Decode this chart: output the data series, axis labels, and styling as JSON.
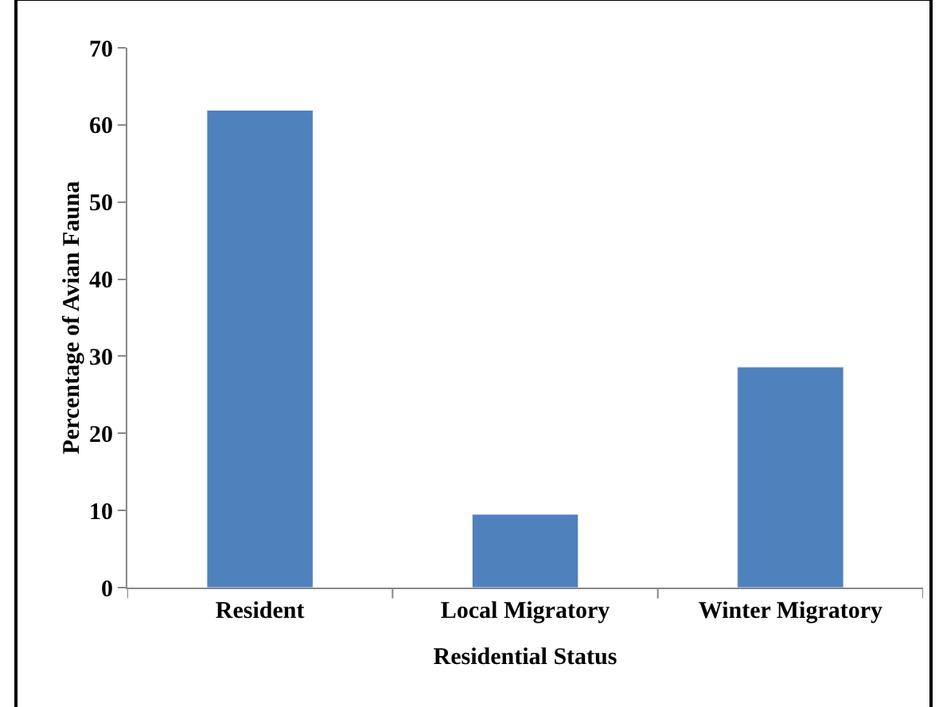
{
  "chart_data": {
    "type": "bar",
    "xlabel": "Residential Status",
    "ylabel": "Percentage of Avian Fauna",
    "categories": [
      "Resident",
      "Local Migratory",
      "Winter Migratory"
    ],
    "values": [
      61.9,
      9.5,
      28.6
    ],
    "color": "#4f81bd",
    "ylim": [
      0,
      70
    ],
    "yticks": [
      0,
      10,
      20,
      30,
      40,
      50,
      60,
      70
    ]
  }
}
